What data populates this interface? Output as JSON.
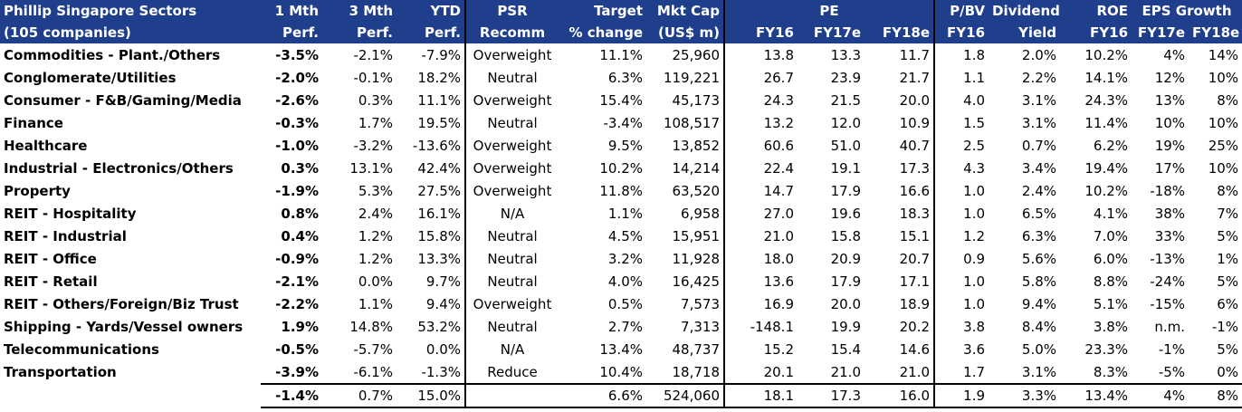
{
  "header": {
    "row1": {
      "sector": "Phillip Singapore Sectors",
      "m1": "1 Mth",
      "m3": "3 Mth",
      "ytd": "YTD",
      "psr": "PSR",
      "target": "Target",
      "mktcap": "Mkt Cap",
      "pe": "PE",
      "pbv": "P/BV",
      "div": "Dividend",
      "roe": "ROE",
      "eps": "EPS Growth"
    },
    "row2": {
      "sector": "(105 companies)",
      "m1": "Perf.",
      "m3": "Perf.",
      "ytd": "Perf.",
      "psr": "Recomm",
      "target": "% change",
      "mktcap": "(US$ m)",
      "pe16": "FY16",
      "pe17": "FY17e",
      "pe18": "FY18e",
      "pbv": "FY16",
      "div": "Yield",
      "roe": "FY16",
      "eps17": "FY17e",
      "eps18": "FY18e"
    }
  },
  "rows": [
    {
      "sector": "Commodities - Plant./Others",
      "m1": "-3.5%",
      "m3": "-2.1%",
      "ytd": "-7.9%",
      "psr": "Overweight",
      "target": "11.1%",
      "mktcap": "25,960",
      "pe16": "13.8",
      "pe17": "13.3",
      "pe18": "11.7",
      "pbv": "1.8",
      "div": "2.0%",
      "roe": "10.2%",
      "eps17": "4%",
      "eps18": "14%"
    },
    {
      "sector": "Conglomerate/Utilities",
      "m1": "-2.0%",
      "m3": "-0.1%",
      "ytd": "18.2%",
      "psr": "Neutral",
      "target": "6.3%",
      "mktcap": "119,221",
      "pe16": "26.7",
      "pe17": "23.9",
      "pe18": "21.7",
      "pbv": "1.1",
      "div": "2.2%",
      "roe": "14.1%",
      "eps17": "12%",
      "eps18": "10%"
    },
    {
      "sector": "Consumer - F&B/Gaming/Media",
      "m1": "-2.6%",
      "m3": "0.3%",
      "ytd": "11.1%",
      "psr": "Overweight",
      "target": "15.4%",
      "mktcap": "45,173",
      "pe16": "24.3",
      "pe17": "21.5",
      "pe18": "20.0",
      "pbv": "4.0",
      "div": "3.1%",
      "roe": "24.3%",
      "eps17": "13%",
      "eps18": "8%"
    },
    {
      "sector": "Finance",
      "m1": "-0.3%",
      "m3": "1.7%",
      "ytd": "19.5%",
      "psr": "Neutral",
      "target": "-3.4%",
      "mktcap": "108,517",
      "pe16": "13.2",
      "pe17": "12.0",
      "pe18": "10.9",
      "pbv": "1.5",
      "div": "3.1%",
      "roe": "11.4%",
      "eps17": "10%",
      "eps18": "10%"
    },
    {
      "sector": "Healthcare",
      "m1": "-1.0%",
      "m3": "-3.2%",
      "ytd": "-13.6%",
      "psr": "Overweight",
      "target": "9.5%",
      "mktcap": "13,852",
      "pe16": "60.6",
      "pe17": "51.0",
      "pe18": "40.7",
      "pbv": "2.5",
      "div": "0.7%",
      "roe": "6.2%",
      "eps17": "19%",
      "eps18": "25%"
    },
    {
      "sector": "Industrial - Electronics/Others",
      "m1": "0.3%",
      "m3": "13.1%",
      "ytd": "42.4%",
      "psr": "Overweight",
      "target": "10.2%",
      "mktcap": "14,214",
      "pe16": "22.4",
      "pe17": "19.1",
      "pe18": "17.3",
      "pbv": "4.3",
      "div": "3.4%",
      "roe": "19.4%",
      "eps17": "17%",
      "eps18": "10%"
    },
    {
      "sector": "Property",
      "m1": "-1.9%",
      "m3": "5.3%",
      "ytd": "27.5%",
      "psr": "Overweight",
      "target": "11.8%",
      "mktcap": "63,520",
      "pe16": "14.7",
      "pe17": "17.9",
      "pe18": "16.6",
      "pbv": "1.0",
      "div": "2.4%",
      "roe": "10.2%",
      "eps17": "-18%",
      "eps18": "8%"
    },
    {
      "sector": "REIT - Hospitality",
      "m1": "0.8%",
      "m3": "2.4%",
      "ytd": "16.1%",
      "psr": "N/A",
      "target": "1.1%",
      "mktcap": "6,958",
      "pe16": "27.0",
      "pe17": "19.6",
      "pe18": "18.3",
      "pbv": "1.0",
      "div": "6.5%",
      "roe": "4.1%",
      "eps17": "38%",
      "eps18": "7%"
    },
    {
      "sector": "REIT - Industrial",
      "m1": "0.4%",
      "m3": "1.2%",
      "ytd": "15.8%",
      "psr": "Neutral",
      "target": "4.5%",
      "mktcap": "15,951",
      "pe16": "21.0",
      "pe17": "15.8",
      "pe18": "15.1",
      "pbv": "1.2",
      "div": "6.3%",
      "roe": "7.0%",
      "eps17": "33%",
      "eps18": "5%"
    },
    {
      "sector": "REIT - Office",
      "m1": "-0.9%",
      "m3": "1.2%",
      "ytd": "13.3%",
      "psr": "Neutral",
      "target": "3.2%",
      "mktcap": "11,928",
      "pe16": "18.0",
      "pe17": "20.9",
      "pe18": "20.7",
      "pbv": "0.9",
      "div": "5.6%",
      "roe": "6.0%",
      "eps17": "-13%",
      "eps18": "1%"
    },
    {
      "sector": "REIT - Retail",
      "m1": "-2.1%",
      "m3": "0.0%",
      "ytd": "9.7%",
      "psr": "Neutral",
      "target": "4.0%",
      "mktcap": "16,425",
      "pe16": "13.6",
      "pe17": "17.9",
      "pe18": "17.1",
      "pbv": "1.0",
      "div": "5.8%",
      "roe": "8.8%",
      "eps17": "-24%",
      "eps18": "5%"
    },
    {
      "sector": "REIT - Others/Foreign/Biz Trust",
      "m1": "-2.2%",
      "m3": "1.1%",
      "ytd": "9.4%",
      "psr": "Overweight",
      "target": "0.5%",
      "mktcap": "7,573",
      "pe16": "16.9",
      "pe17": "20.0",
      "pe18": "18.9",
      "pbv": "1.0",
      "div": "9.4%",
      "roe": "5.1%",
      "eps17": "-15%",
      "eps18": "6%"
    },
    {
      "sector": "Shipping - Yards/Vessel owners",
      "m1": "1.9%",
      "m3": "14.8%",
      "ytd": "53.2%",
      "psr": "Neutral",
      "target": "2.7%",
      "mktcap": "7,313",
      "pe16": "-148.1",
      "pe17": "19.9",
      "pe18": "20.2",
      "pbv": "3.8",
      "div": "8.4%",
      "roe": "3.8%",
      "eps17": "n.m.",
      "eps18": "-1%"
    },
    {
      "sector": "Telecommunications",
      "m1": "-0.5%",
      "m3": "-5.7%",
      "ytd": "0.0%",
      "psr": "N/A",
      "target": "13.4%",
      "mktcap": "48,737",
      "pe16": "15.2",
      "pe17": "15.4",
      "pe18": "14.6",
      "pbv": "3.6",
      "div": "5.0%",
      "roe": "23.3%",
      "eps17": "-1%",
      "eps18": "5%"
    },
    {
      "sector": "Transportation",
      "m1": "-3.9%",
      "m3": "-6.1%",
      "ytd": "-1.3%",
      "psr": "Reduce",
      "target": "10.4%",
      "mktcap": "18,718",
      "pe16": "20.1",
      "pe17": "21.0",
      "pe18": "21.0",
      "pbv": "1.7",
      "div": "3.1%",
      "roe": "8.3%",
      "eps17": "-5%",
      "eps18": "0%"
    }
  ],
  "total": {
    "m1": "-1.4%",
    "m3": "0.7%",
    "ytd": "15.0%",
    "target": "6.6%",
    "mktcap": "524,060",
    "pe16": "18.1",
    "pe17": "17.3",
    "pe18": "16.0",
    "pbv": "1.9",
    "div": "3.3%",
    "roe": "13.4%",
    "eps17": "4%",
    "eps18": "8%"
  },
  "colors": {
    "header_bg": "#1f3e8c",
    "header_text": "#ffffff"
  }
}
